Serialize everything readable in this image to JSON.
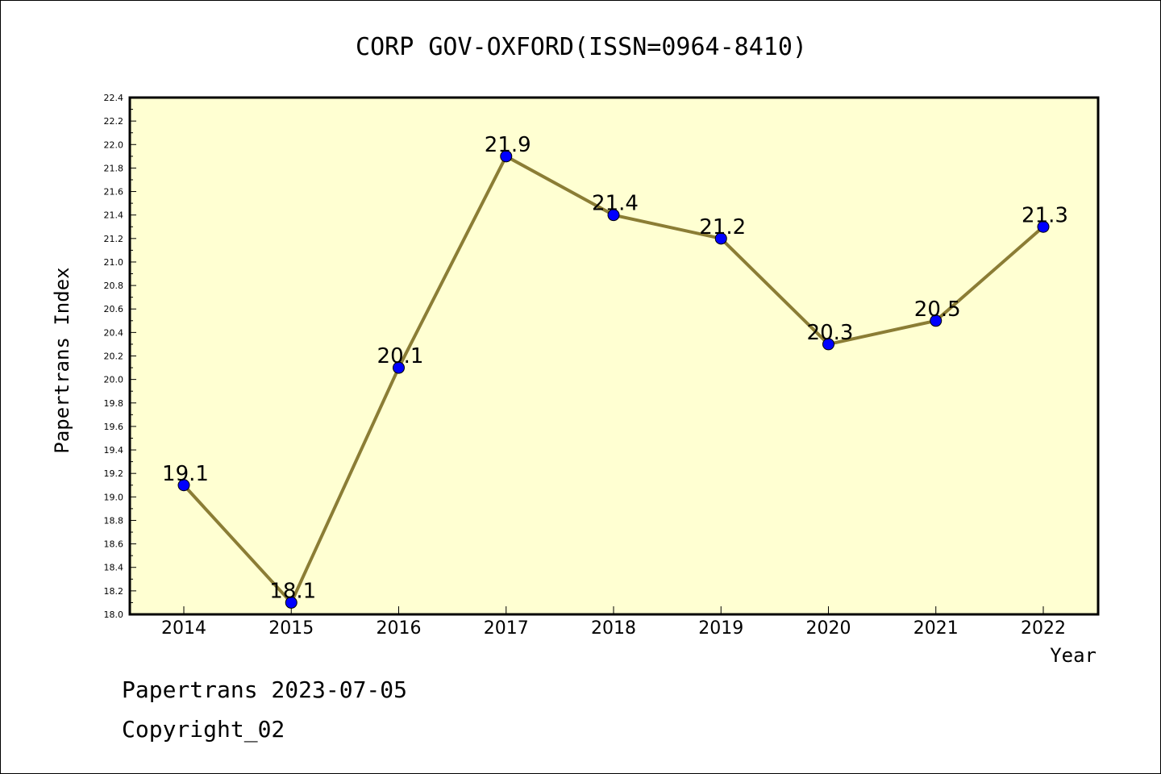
{
  "chart_data": {
    "type": "line",
    "title": "CORP GOV-OXFORD(ISSN=0964-8410)",
    "xlabel": "Year",
    "ylabel": "Papertrans Index",
    "x": [
      "2014",
      "2015",
      "2016",
      "2017",
      "2018",
      "2019",
      "2020",
      "2021",
      "2022"
    ],
    "series": [
      {
        "values": [
          19.1,
          18.1,
          20.1,
          21.9,
          21.4,
          21.2,
          20.3,
          20.5,
          21.3
        ],
        "labels": [
          "19.1",
          "18.1",
          "20.1",
          "21.9",
          "21.4",
          "21.2",
          "20.3",
          "20.5",
          "21.3"
        ]
      }
    ],
    "ylim": [
      18.0,
      22.4
    ],
    "ytick_step": 0.2,
    "grid": false,
    "colors": {
      "plot_background": "#ffffd2",
      "line": "#8b7d35",
      "marker": "#0000ff"
    }
  },
  "footer": {
    "line1": "Papertrans 2023-07-05",
    "line2": "Copyright_02"
  }
}
